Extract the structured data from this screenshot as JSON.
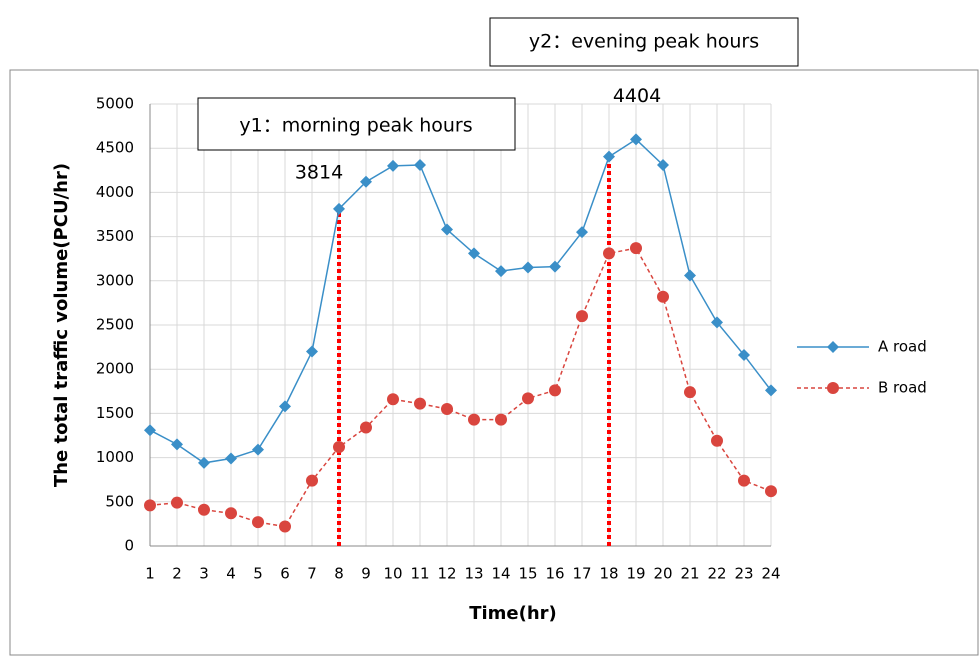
{
  "chart_data": {
    "type": "line",
    "x_label": "Time(hr)",
    "y_label": "The total traffic volume(PCU/hr)",
    "x": [
      1,
      2,
      3,
      4,
      5,
      6,
      7,
      8,
      9,
      10,
      11,
      12,
      13,
      14,
      15,
      16,
      17,
      18,
      19,
      20,
      21,
      22,
      23,
      24
    ],
    "series": [
      {
        "name": "A road",
        "color": "#3a8fc8",
        "marker": "diamond",
        "dashed": false,
        "values": [
          1310,
          1150,
          940,
          990,
          1090,
          1580,
          2200,
          3814,
          4120,
          4300,
          4310,
          3580,
          3310,
          3110,
          3150,
          3160,
          3550,
          4404,
          4600,
          4310,
          3060,
          2530,
          2160,
          1760
        ]
      },
      {
        "name": "B road",
        "color": "#d9453e",
        "marker": "circle",
        "dashed": true,
        "values": [
          460,
          490,
          410,
          370,
          270,
          220,
          740,
          1120,
          1340,
          1660,
          1610,
          1550,
          1430,
          1430,
          1670,
          1760,
          2600,
          3310,
          3370,
          2820,
          1740,
          1190,
          740,
          620
        ]
      }
    ],
    "xlim": [
      1,
      24
    ],
    "xticks": [
      1,
      2,
      3,
      4,
      5,
      6,
      7,
      8,
      9,
      10,
      11,
      12,
      13,
      14,
      15,
      16,
      17,
      18,
      19,
      20,
      21,
      22,
      23,
      24
    ],
    "ylim": [
      0,
      5000
    ],
    "yticks": [
      0,
      500,
      1000,
      1500,
      2000,
      2500,
      3000,
      3500,
      4000,
      4500,
      5000
    ],
    "grid": true,
    "legend": "right",
    "peaks": [
      {
        "x": 8,
        "value": 3814
      },
      {
        "x": 18,
        "value": 4404
      }
    ],
    "peak_color": "#ff0000",
    "annotations": [
      "y1：morning peak hours",
      "y2：evening peak hours"
    ]
  }
}
